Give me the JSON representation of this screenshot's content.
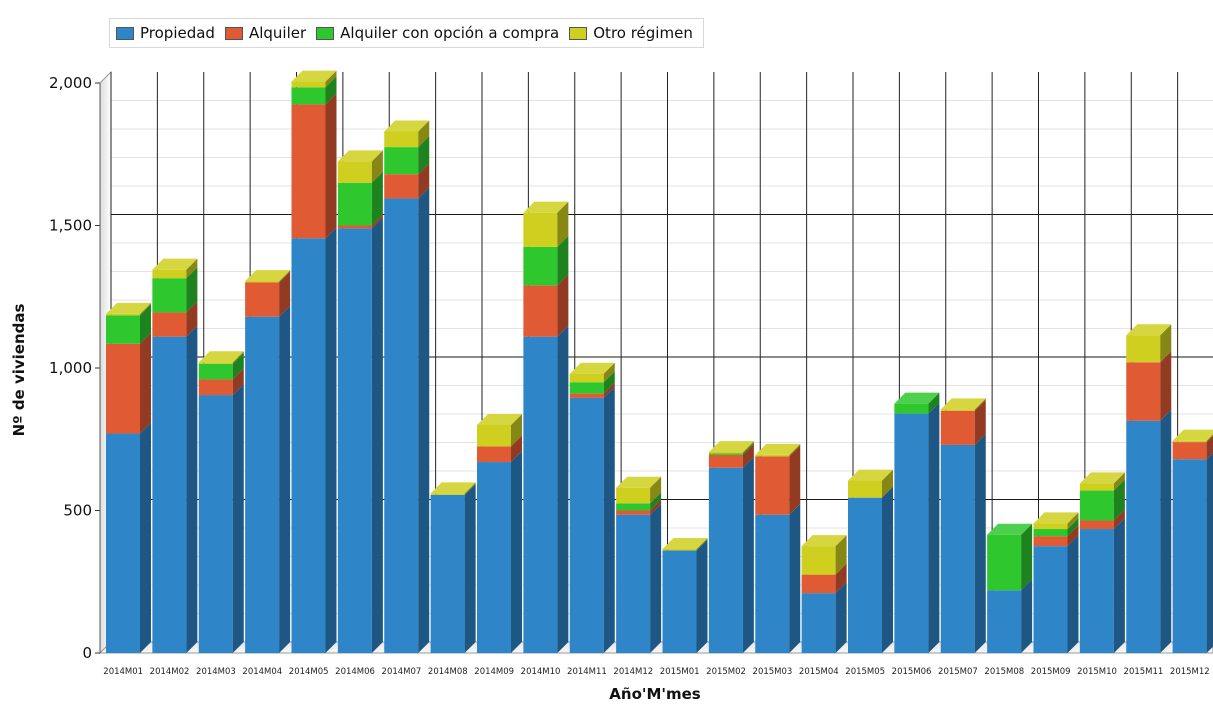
{
  "chart_data": {
    "type": "bar",
    "stacked": true,
    "title": "",
    "xlabel": "Año'M'mes",
    "ylabel": "Nº de viviendas",
    "ylim": [
      0,
      2000
    ],
    "yticks": [
      0,
      500,
      1000,
      1500,
      2000
    ],
    "ytick_labels": [
      "0",
      "500",
      "1,000",
      "1,500",
      "2,000"
    ],
    "grid": true,
    "legend_position": "top-left",
    "categories": [
      "2014M01",
      "2014M02",
      "2014M03",
      "2014M04",
      "2014M05",
      "2014M06",
      "2014M07",
      "2014M08",
      "2014M09",
      "2014M10",
      "2014M11",
      "2014M12",
      "2015M01",
      "2015M02",
      "2015M03",
      "2015M04",
      "2015M05",
      "2015M06",
      "2015M07",
      "2015M08",
      "2015M09",
      "2015M10",
      "2015M11",
      "2015M12"
    ],
    "series": [
      {
        "name": "Propiedad",
        "color": "#2e86c9",
        "values": [
          770,
          1110,
          905,
          1180,
          1455,
          1490,
          1595,
          555,
          670,
          1110,
          895,
          485,
          360,
          650,
          485,
          210,
          545,
          840,
          730,
          220,
          375,
          435,
          815,
          680
        ]
      },
      {
        "name": "Alquiler",
        "color": "#e05a34",
        "values": [
          315,
          85,
          55,
          120,
          470,
          10,
          85,
          0,
          55,
          180,
          15,
          15,
          0,
          45,
          205,
          65,
          0,
          0,
          120,
          0,
          35,
          30,
          205,
          60
        ]
      },
      {
        "name": "Alquiler con opción a compra",
        "color": "#2ec82e",
        "values": [
          100,
          120,
          55,
          0,
          60,
          150,
          95,
          0,
          0,
          135,
          40,
          25,
          0,
          5,
          0,
          0,
          0,
          35,
          0,
          195,
          25,
          105,
          0,
          0
        ]
      },
      {
        "name": "Otro régimen",
        "color": "#cfcf20",
        "values": [
          5,
          30,
          5,
          5,
          20,
          75,
          55,
          5,
          75,
          120,
          30,
          55,
          5,
          5,
          5,
          100,
          60,
          0,
          5,
          0,
          20,
          25,
          95,
          5
        ]
      }
    ]
  }
}
